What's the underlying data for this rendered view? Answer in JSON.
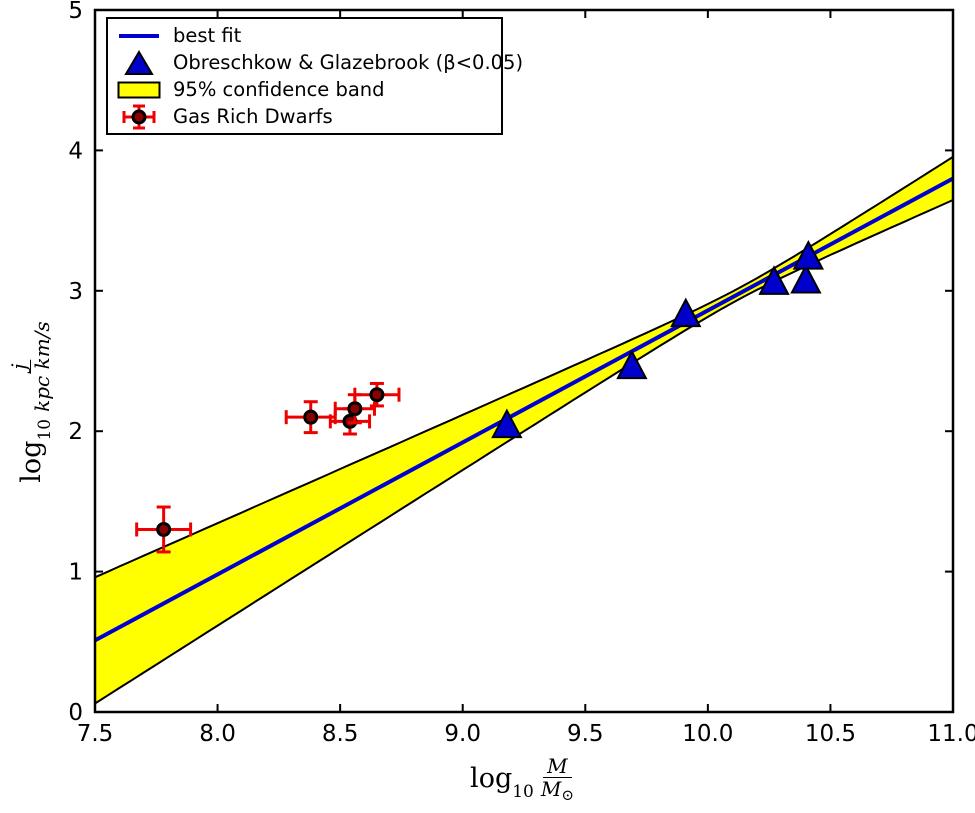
{
  "chart_data": {
    "type": "scatter",
    "title": "",
    "xlim": [
      7.5,
      11.0
    ],
    "ylim": [
      0,
      5
    ],
    "grid": false,
    "legend_position": "upper-left",
    "x_ticks": [
      {
        "v": 7.5,
        "label": "7.5"
      },
      {
        "v": 8.0,
        "label": "8.0"
      },
      {
        "v": 8.5,
        "label": "8.5"
      },
      {
        "v": 9.0,
        "label": "9.0"
      },
      {
        "v": 9.5,
        "label": "9.5"
      },
      {
        "v": 10.0,
        "label": "10.0"
      },
      {
        "v": 10.5,
        "label": "10.5"
      },
      {
        "v": 11.0,
        "label": "11.0"
      }
    ],
    "y_ticks": [
      {
        "v": 0,
        "label": "0"
      },
      {
        "v": 1,
        "label": "1"
      },
      {
        "v": 2,
        "label": "2"
      },
      {
        "v": 3,
        "label": "3"
      },
      {
        "v": 4,
        "label": "4"
      },
      {
        "v": 5,
        "label": "5"
      }
    ],
    "xlabel_parts": {
      "log": "log",
      "sub": "10",
      "num": "M",
      "den": "M",
      "den_sub": "⊙"
    },
    "ylabel_parts": {
      "log": "log",
      "sub": "10",
      "num": "j",
      "den": "kpc km/s"
    },
    "best_fit": {
      "label": "best fit",
      "color": "#0000d0",
      "x0": 7.5,
      "intercept": 0.51,
      "slope": 0.94
    },
    "confidence_band": {
      "label": "95% confidence band",
      "color": "#ffff00",
      "edge_color": "#000000",
      "h_min": 0.04,
      "curvature": 0.029,
      "x_pinch": 10.13
    },
    "triangles": {
      "label": "Obreschkow & Glazebrook (β<0.05)",
      "color": "#0000cd",
      "edge_color": "#000000",
      "points": [
        [
          9.18,
          2.04
        ],
        [
          9.69,
          2.46
        ],
        [
          9.91,
          2.83
        ],
        [
          10.27,
          3.06
        ],
        [
          10.4,
          3.07
        ],
        [
          10.41,
          3.24
        ]
      ]
    },
    "dwarfs": {
      "label": "Gas Rich Dwarfs",
      "bar_color": "#ee0000",
      "face_color": "#8b0000",
      "edge_color": "#000000",
      "points": [
        {
          "x": 7.78,
          "y": 1.3,
          "xerr": 0.11,
          "yerr": 0.16
        },
        {
          "x": 8.38,
          "y": 2.1,
          "xerr": 0.1,
          "yerr": 0.11
        },
        {
          "x": 8.54,
          "y": 2.07,
          "xerr": 0.08,
          "yerr": 0.09
        },
        {
          "x": 8.56,
          "y": 2.16,
          "xerr": 0.08,
          "yerr": 0.1
        },
        {
          "x": 8.65,
          "y": 2.26,
          "xerr": 0.09,
          "yerr": 0.08
        }
      ]
    }
  }
}
